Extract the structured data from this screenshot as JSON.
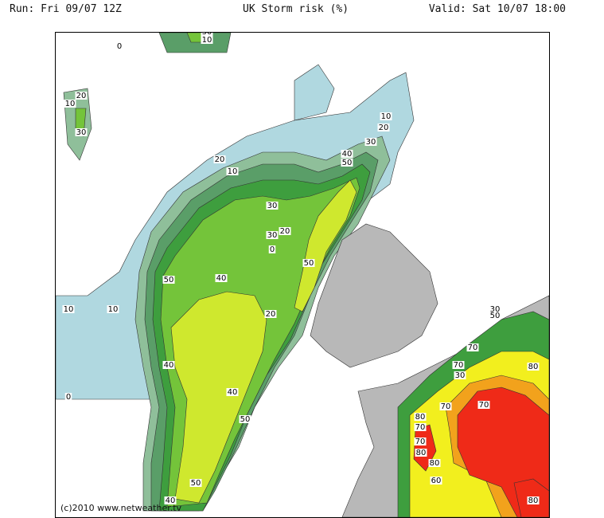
{
  "header": {
    "run": "Run: Fri 09/07 12Z",
    "title": "UK Storm risk (%)",
    "valid": "Valid: Sat 10/07 18:00"
  },
  "credit": "(c)2010 www.netweather.tv",
  "legend_colors": {
    "sea_low": "#b0d8e0",
    "band_10": "#8fbf9a",
    "band_20": "#5a9e68",
    "band_30": "#3e9e3e",
    "band_40": "#74c43a",
    "band_50": "#cfe82e",
    "band_60": "#f2ef1e",
    "band_70": "#f2a21c",
    "band_80": "#ef2a18",
    "land_terrain": "#b8b8b8"
  },
  "contour_labels": [
    {
      "text": "30"
    },
    {
      "text": "10"
    },
    {
      "text": "0"
    },
    {
      "text": "20"
    },
    {
      "text": "10"
    },
    {
      "text": "30"
    },
    {
      "text": "10"
    },
    {
      "text": "20"
    },
    {
      "text": "30"
    },
    {
      "text": "40"
    },
    {
      "text": "50"
    },
    {
      "text": "20"
    },
    {
      "text": "10"
    },
    {
      "text": "10"
    },
    {
      "text": "30"
    },
    {
      "text": "30"
    },
    {
      "text": "20"
    },
    {
      "text": "0"
    },
    {
      "text": "50"
    },
    {
      "text": "50"
    },
    {
      "text": "40"
    },
    {
      "text": "10"
    },
    {
      "text": "20"
    },
    {
      "text": "40"
    },
    {
      "text": "0"
    },
    {
      "text": "40"
    },
    {
      "text": "50"
    },
    {
      "text": "50"
    },
    {
      "text": "40"
    },
    {
      "text": "30"
    },
    {
      "text": "50"
    },
    {
      "text": "70"
    },
    {
      "text": "70"
    },
    {
      "text": "30"
    },
    {
      "text": "80"
    },
    {
      "text": "70"
    },
    {
      "text": "70"
    },
    {
      "text": "80"
    },
    {
      "text": "70"
    },
    {
      "text": "80"
    },
    {
      "text": "60"
    },
    {
      "text": "80"
    },
    {
      "text": "80"
    },
    {
      "text": "70"
    }
  ]
}
